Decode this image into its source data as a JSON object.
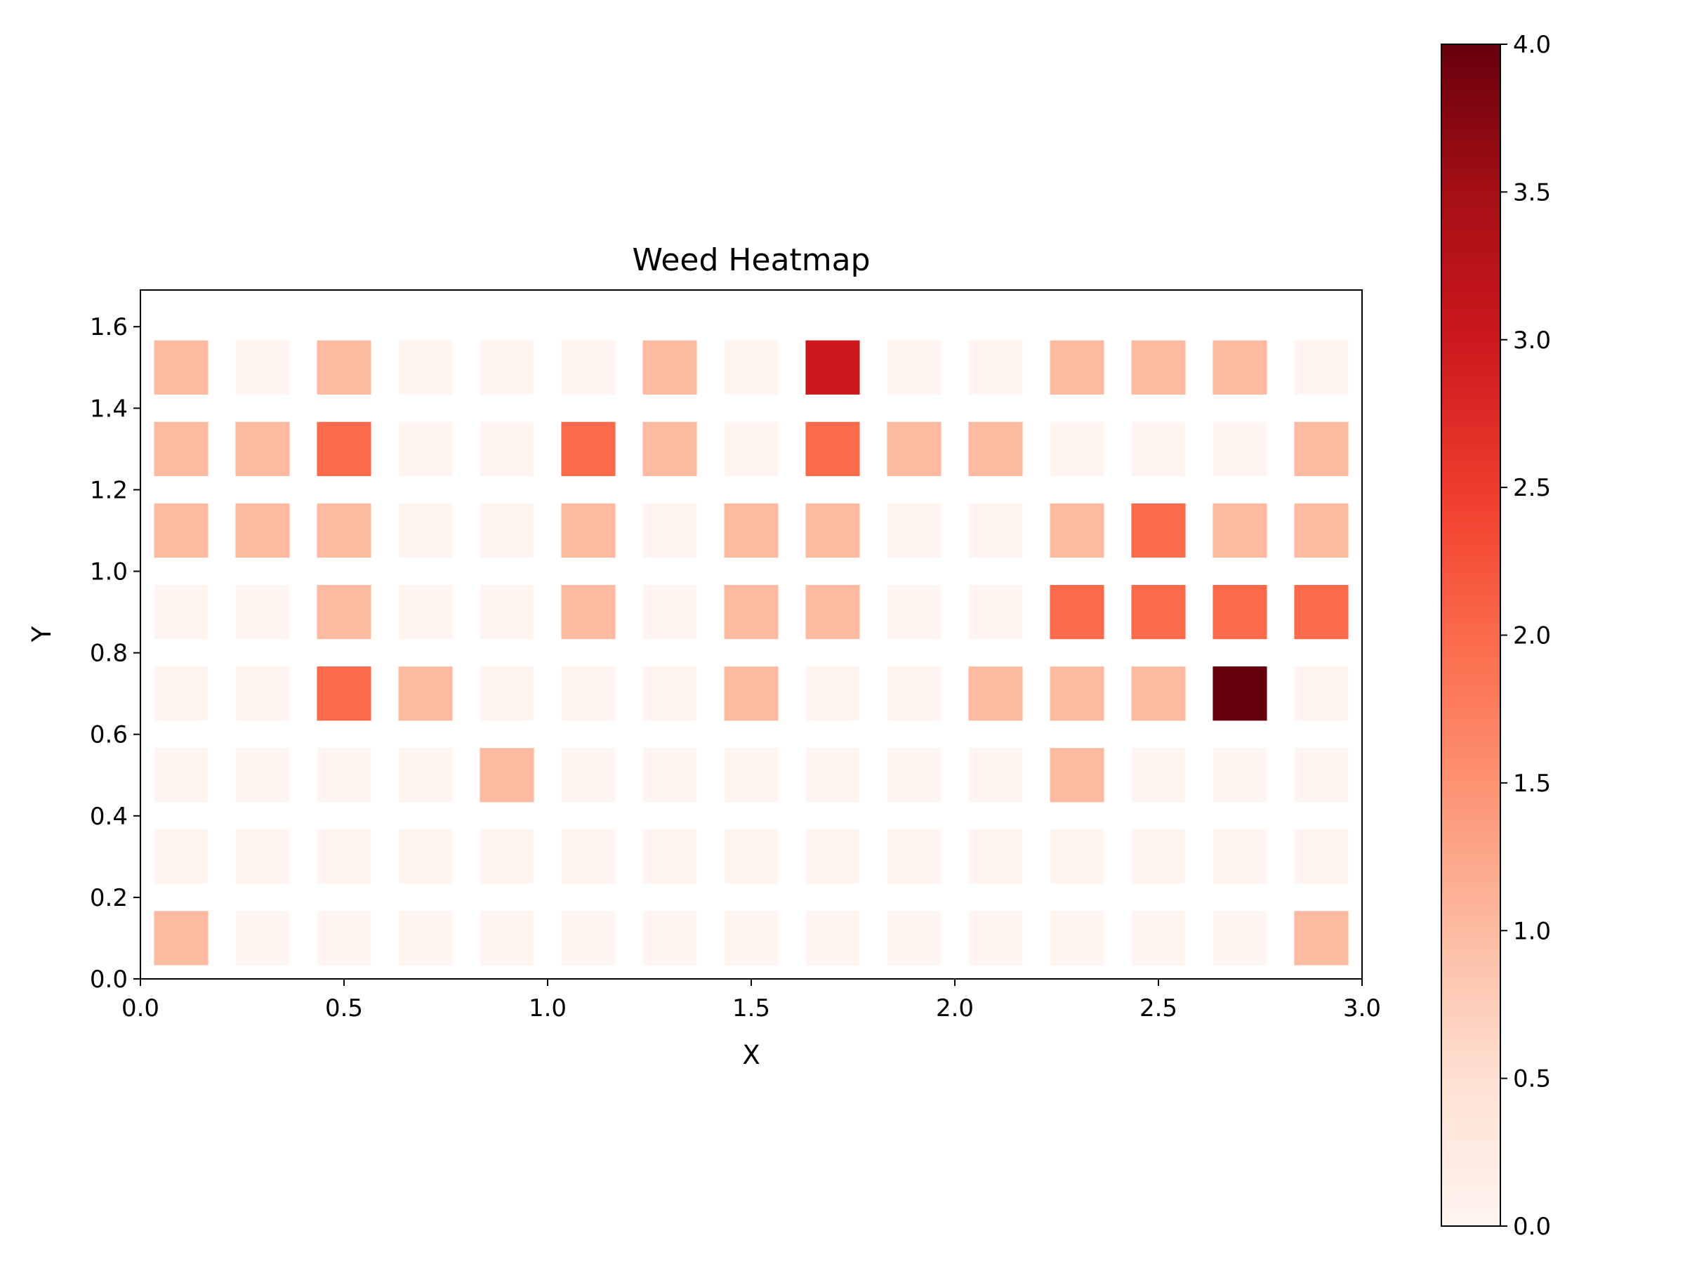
{
  "chart_data": {
    "type": "heatmap",
    "title": "Weed Heatmap",
    "xlabel": "X",
    "ylabel": "Y",
    "xlim": [
      0.0,
      3.0
    ],
    "ylim": [
      0.0,
      1.69
    ],
    "xticks": [
      "0.0",
      "0.5",
      "1.0",
      "1.5",
      "2.0",
      "2.5",
      "3.0"
    ],
    "yticks": [
      "0.0",
      "0.2",
      "0.4",
      "0.6",
      "0.8",
      "1.0",
      "1.2",
      "1.4",
      "1.6"
    ],
    "x": [
      0.1,
      0.3,
      0.5,
      0.7,
      0.9,
      1.1,
      1.3,
      1.5,
      1.7,
      1.9,
      2.1,
      2.3,
      2.5,
      2.7,
      2.9
    ],
    "y": [
      0.1,
      0.3,
      0.5,
      0.7,
      0.9,
      1.1,
      1.3,
      1.5
    ],
    "cell_size": 0.133,
    "values": [
      [
        1,
        0,
        0,
        0,
        0,
        0,
        0,
        0,
        0,
        0,
        0,
        0,
        0,
        0,
        1
      ],
      [
        0,
        0,
        0,
        0,
        0,
        0,
        0,
        0,
        0,
        0,
        0,
        0,
        0,
        0,
        0
      ],
      [
        0,
        0,
        0,
        0,
        1,
        0,
        0,
        0,
        0,
        0,
        0,
        1,
        0,
        0,
        0
      ],
      [
        0,
        0,
        2,
        1,
        0,
        0,
        0,
        1,
        0,
        0,
        1,
        1,
        1,
        4,
        0
      ],
      [
        0,
        0,
        1,
        0,
        0,
        1,
        0,
        1,
        1,
        0,
        0,
        2,
        2,
        2,
        2
      ],
      [
        1,
        1,
        1,
        0,
        0,
        1,
        0,
        1,
        1,
        0,
        0,
        1,
        2,
        1,
        1
      ],
      [
        1,
        1,
        2,
        0,
        0,
        2,
        1,
        0,
        2,
        1,
        1,
        0,
        0,
        0,
        1
      ],
      [
        1,
        0,
        1,
        0,
        0,
        0,
        1,
        0,
        3,
        0,
        0,
        1,
        1,
        1,
        0
      ]
    ],
    "colorbar": {
      "min": 0.0,
      "max": 4.0,
      "ticks": [
        "0.0",
        "0.5",
        "1.0",
        "1.5",
        "2.0",
        "2.5",
        "3.0",
        "3.5",
        "4.0"
      ],
      "colormap": "Reds",
      "colors": [
        "#fff5f0",
        "#fee0d2",
        "#fcbba1",
        "#fc9272",
        "#fb6a4a",
        "#ef3b2c",
        "#cb181d",
        "#a50f15",
        "#67000d"
      ]
    }
  }
}
